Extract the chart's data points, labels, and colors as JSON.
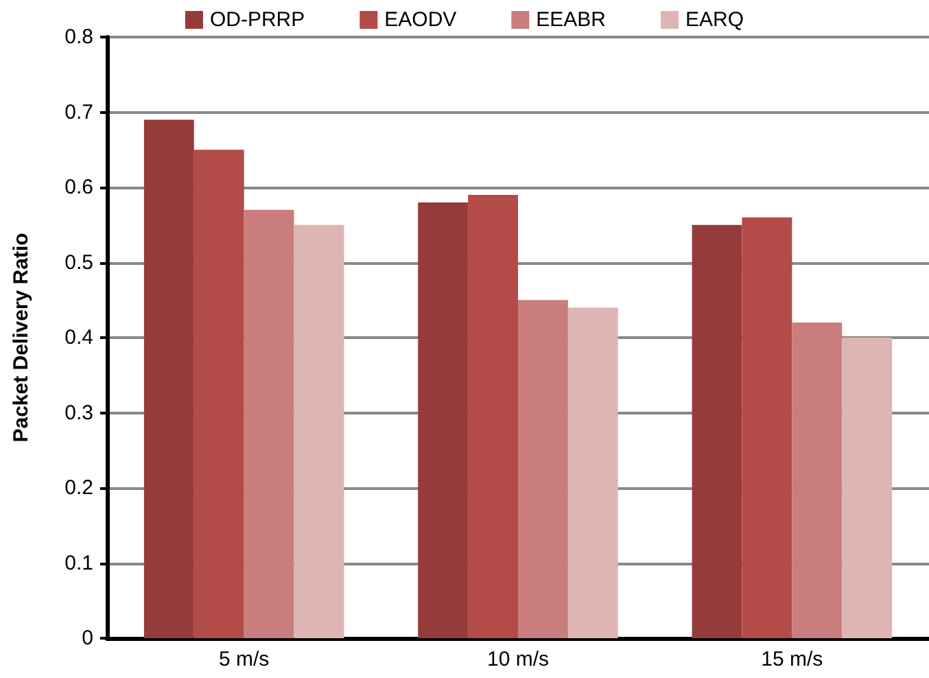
{
  "chart_data": {
    "type": "bar",
    "ylabel": "Packet Delivery Ratio",
    "categories": [
      "5 m/s",
      "10 m/s",
      "15 m/s"
    ],
    "series": [
      {
        "name": "OD-PRRP",
        "color": "#953b39",
        "values": [
          0.69,
          0.58,
          0.55
        ]
      },
      {
        "name": "EAODV",
        "color": "#b34b48",
        "values": [
          0.65,
          0.59,
          0.56
        ]
      },
      {
        "name": "EEABR",
        "color": "#c97d7c",
        "values": [
          0.57,
          0.45,
          0.42
        ]
      },
      {
        "name": "EARQ",
        "color": "#dfb5b4",
        "values": [
          0.55,
          0.44,
          0.4
        ]
      }
    ],
    "ylim": [
      0,
      0.8
    ],
    "yticks": [
      0,
      0.1,
      0.2,
      0.3,
      0.4,
      0.5,
      0.6,
      0.7,
      0.8
    ],
    "grid": "y",
    "legend": "top"
  }
}
